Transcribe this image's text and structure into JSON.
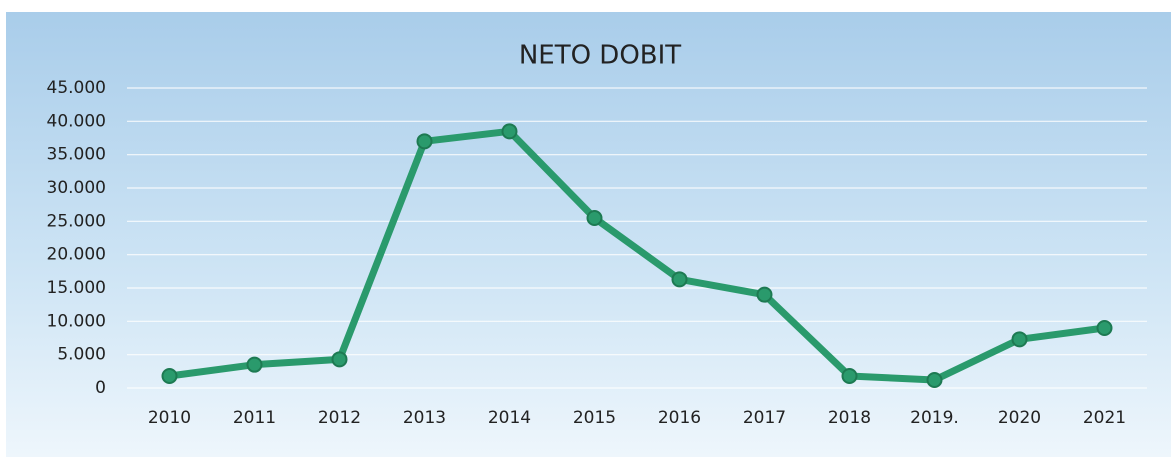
{
  "chart_data": {
    "type": "line",
    "title": "NETO DOBIT",
    "categories": [
      "2010",
      "2011",
      "2012",
      "2013",
      "2014",
      "2015",
      "2016",
      "2017",
      "2018",
      "2019.",
      "2020",
      "2021"
    ],
    "series": [
      {
        "color": "#2a9a6c",
        "values": [
          1800,
          3500,
          4300,
          37000,
          38500,
          25500,
          16300,
          14000,
          1800,
          1200,
          7300,
          9000
        ]
      }
    ],
    "ylim": [
      0,
      45000
    ],
    "yticks": [
      0,
      {
        "value": 5000,
        "label": "5.000"
      },
      {
        "value": 10000,
        "label": "10.000"
      },
      {
        "value": 15000,
        "label": "15.000"
      },
      {
        "value": 20000,
        "label": "20.000"
      },
      {
        "value": 25000,
        "label": "25.000"
      },
      {
        "value": 30000,
        "label": "30.000"
      },
      {
        "value": 35000,
        "label": "35.000"
      },
      {
        "value": 40000,
        "label": "40.000"
      },
      {
        "value": 45000,
        "label": "45.000"
      }
    ],
    "grid": true
  }
}
